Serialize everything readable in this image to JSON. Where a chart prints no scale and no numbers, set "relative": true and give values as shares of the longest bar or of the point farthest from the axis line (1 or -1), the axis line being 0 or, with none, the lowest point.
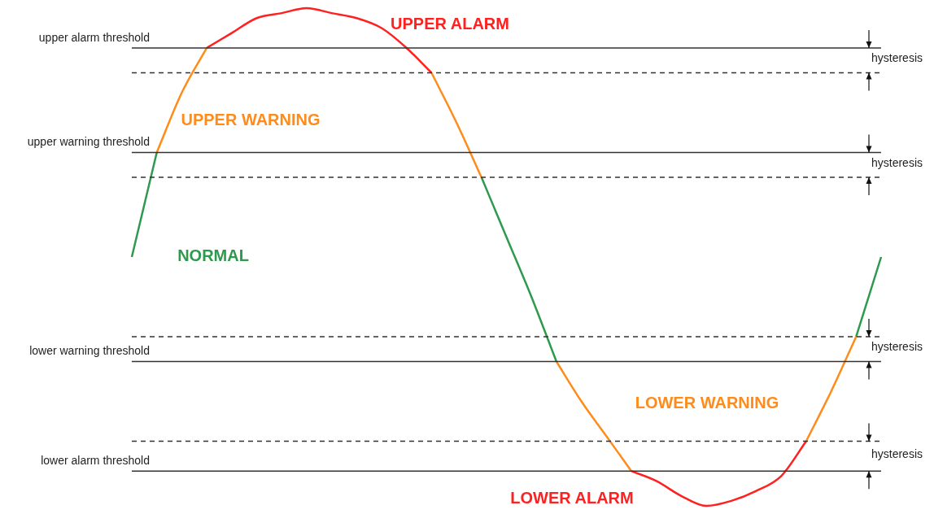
{
  "chart_data": {
    "type": "line",
    "relative": true,
    "categories": [
      null,
      null,
      null,
      null,
      null,
      null,
      null,
      null,
      null,
      null,
      null,
      null,
      null,
      null,
      null,
      null,
      null,
      null,
      null,
      null,
      null,
      null,
      null,
      null,
      null,
      null,
      null,
      null,
      null,
      null,
      null
    ],
    "series": [
      {
        "color": "#333333",
        "line_style": "solid",
        "values": [
          0.92,
          0.92,
          0.92,
          0.92,
          0.92,
          0.92,
          0.92,
          0.92,
          0.92,
          0.92,
          0.92,
          0.92,
          0.92,
          0.92,
          0.92,
          0.92,
          0.92,
          0.92,
          0.92,
          0.92,
          0.92,
          0.92,
          0.92,
          0.92,
          0.92,
          0.92,
          0.92,
          0.92,
          0.92,
          0.92,
          0.92
        ]
      },
      {
        "color": "#333333",
        "line_style": "dashed",
        "values": [
          0.87,
          0.87,
          0.87,
          0.87,
          0.87,
          0.87,
          0.87,
          0.87,
          0.87,
          0.87,
          0.87,
          0.87,
          0.87,
          0.87,
          0.87,
          0.87,
          0.87,
          0.87,
          0.87,
          0.87,
          0.87,
          0.87,
          0.87,
          0.87,
          0.87,
          0.87,
          0.87,
          0.87,
          0.87,
          0.87,
          0.87
        ]
      },
      {
        "color": "#333333",
        "line_style": "solid",
        "values": [
          0.71,
          0.71,
          0.71,
          0.71,
          0.71,
          0.71,
          0.71,
          0.71,
          0.71,
          0.71,
          0.71,
          0.71,
          0.71,
          0.71,
          0.71,
          0.71,
          0.71,
          0.71,
          0.71,
          0.71,
          0.71,
          0.71,
          0.71,
          0.71,
          0.71,
          0.71,
          0.71,
          0.71,
          0.71,
          0.71,
          0.71
        ]
      },
      {
        "color": "#333333",
        "line_style": "dashed",
        "values": [
          0.66,
          0.66,
          0.66,
          0.66,
          0.66,
          0.66,
          0.66,
          0.66,
          0.66,
          0.66,
          0.66,
          0.66,
          0.66,
          0.66,
          0.66,
          0.66,
          0.66,
          0.66,
          0.66,
          0.66,
          0.66,
          0.66,
          0.66,
          0.66,
          0.66,
          0.66,
          0.66,
          0.66,
          0.66,
          0.66,
          0.66
        ]
      },
      {
        "color": "#333333",
        "line_style": "dashed",
        "values": [
          0.34,
          0.34,
          0.34,
          0.34,
          0.34,
          0.34,
          0.34,
          0.34,
          0.34,
          0.34,
          0.34,
          0.34,
          0.34,
          0.34,
          0.34,
          0.34,
          0.34,
          0.34,
          0.34,
          0.34,
          0.34,
          0.34,
          0.34,
          0.34,
          0.34,
          0.34,
          0.34,
          0.34,
          0.34,
          0.34,
          0.34
        ]
      },
      {
        "color": "#333333",
        "line_style": "solid",
        "values": [
          0.29,
          0.29,
          0.29,
          0.29,
          0.29,
          0.29,
          0.29,
          0.29,
          0.29,
          0.29,
          0.29,
          0.29,
          0.29,
          0.29,
          0.29,
          0.29,
          0.29,
          0.29,
          0.29,
          0.29,
          0.29,
          0.29,
          0.29,
          0.29,
          0.29,
          0.29,
          0.29,
          0.29,
          0.29,
          0.29,
          0.29
        ]
      },
      {
        "color": "#333333",
        "line_style": "dashed",
        "values": [
          0.13,
          0.13,
          0.13,
          0.13,
          0.13,
          0.13,
          0.13,
          0.13,
          0.13,
          0.13,
          0.13,
          0.13,
          0.13,
          0.13,
          0.13,
          0.13,
          0.13,
          0.13,
          0.13,
          0.13,
          0.13,
          0.13,
          0.13,
          0.13,
          0.13,
          0.13,
          0.13,
          0.13,
          0.13,
          0.13,
          0.13
        ]
      },
      {
        "color": "#333333",
        "line_style": "solid",
        "values": [
          0.07,
          0.07,
          0.07,
          0.07,
          0.07,
          0.07,
          0.07,
          0.07,
          0.07,
          0.07,
          0.07,
          0.07,
          0.07,
          0.07,
          0.07,
          0.07,
          0.07,
          0.07,
          0.07,
          0.07,
          0.07,
          0.07,
          0.07,
          0.07,
          0.07,
          0.07,
          0.07,
          0.07,
          0.07,
          0.07,
          0.07
        ]
      },
      {
        "name": "NORMAL",
        "color": "#2e9a4e",
        "values": [
          0.5,
          0.71,
          null,
          null,
          null,
          null,
          null,
          null,
          null,
          null,
          null,
          null,
          null,
          null,
          0.66,
          0.54,
          0.42,
          0.29,
          null,
          null,
          null,
          null,
          null,
          null,
          null,
          null,
          null,
          null,
          null,
          0.34,
          0.5
        ]
      },
      {
        "name": "UPPER WARNING",
        "color": "#ff8c1a",
        "values": [
          null,
          0.71,
          0.83,
          0.92,
          null,
          null,
          null,
          null,
          null,
          null,
          null,
          null,
          0.87,
          0.77,
          0.66,
          null,
          null,
          null,
          null,
          null,
          null,
          null,
          null,
          null,
          null,
          null,
          null,
          null,
          null,
          null,
          null
        ]
      },
      {
        "name": "UPPER ALARM",
        "color": "#ff2020",
        "values": [
          null,
          null,
          null,
          0.92,
          0.95,
          0.98,
          0.99,
          1.0,
          0.99,
          0.98,
          0.96,
          0.92,
          0.87,
          null,
          null,
          null,
          null,
          null,
          null,
          null,
          null,
          null,
          null,
          null,
          null,
          null,
          null,
          null,
          null,
          null,
          null
        ]
      },
      {
        "name": "LOWER WARNING",
        "color": "#ff8c1a",
        "values": [
          null,
          null,
          null,
          null,
          null,
          null,
          null,
          null,
          null,
          null,
          null,
          null,
          null,
          null,
          null,
          null,
          null,
          0.29,
          0.21,
          0.14,
          0.07,
          null,
          null,
          null,
          null,
          null,
          null,
          0.13,
          0.23,
          0.34,
          null
        ]
      },
      {
        "name": "LOWER ALARM",
        "color": "#ff2020",
        "values": [
          null,
          null,
          null,
          null,
          null,
          null,
          null,
          null,
          null,
          null,
          null,
          null,
          null,
          null,
          null,
          null,
          null,
          null,
          null,
          null,
          0.07,
          0.05,
          0.02,
          0.0,
          0.01,
          0.03,
          0.06,
          0.13,
          null,
          null,
          null
        ]
      }
    ],
    "annotations": [
      "upper alarm threshold",
      "upper warning threshold",
      "lower warning threshold",
      "lower alarm threshold",
      "hysteresis",
      "hysteresis",
      "hysteresis",
      "hysteresis"
    ]
  }
}
